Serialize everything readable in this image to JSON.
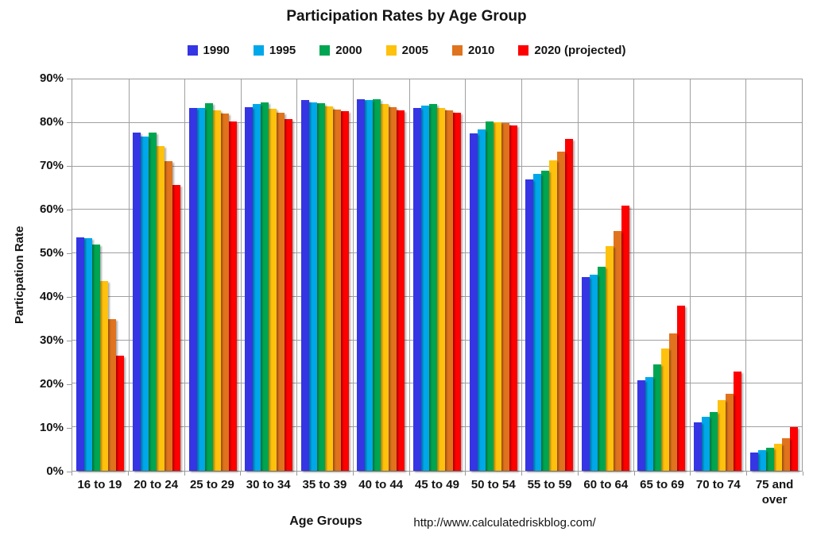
{
  "title": "Participation Rates by Age Group",
  "footer": {
    "url": "http://www.calculatedriskblog.com/"
  },
  "chart_data": {
    "type": "bar",
    "title": "Participation Rates by Age Group",
    "xlabel": "Age Groups",
    "ylabel": "Particpation Rate",
    "ylim": [
      0,
      90
    ],
    "ytick_step": 10,
    "ytick_suffix": "%",
    "grid": true,
    "legend_position": "top",
    "grid_color": "#a0a0a0",
    "categories": [
      "16 to 19",
      "20 to 24",
      "25 to 29",
      "30 to 34",
      "35 to 39",
      "40 to 44",
      "45 to 49",
      "50 to 54",
      "55 to 59",
      "60 to 64",
      "65 to 69",
      "70 to 74",
      "75 and over"
    ],
    "series": [
      {
        "name": "1990",
        "color": "#3535e4",
        "values": [
          53.7,
          77.8,
          83.5,
          83.7,
          85.3,
          85.5,
          83.5,
          77.5,
          67.0,
          44.5,
          20.9,
          11.1,
          4.2
        ]
      },
      {
        "name": "1995",
        "color": "#00a8ea",
        "values": [
          53.5,
          76.9,
          83.5,
          84.3,
          84.7,
          85.2,
          84.0,
          78.5,
          68.3,
          45.1,
          21.6,
          12.5,
          4.7
        ]
      },
      {
        "name": "2000",
        "color": "#00a551",
        "values": [
          52.0,
          77.8,
          84.6,
          84.8,
          84.6,
          85.4,
          84.4,
          80.3,
          69.1,
          47.0,
          24.5,
          13.5,
          5.3
        ]
      },
      {
        "name": "2005",
        "color": "#fec10d",
        "values": [
          43.7,
          74.6,
          82.8,
          83.2,
          83.8,
          84.4,
          83.5,
          80.1,
          71.4,
          51.6,
          28.1,
          16.3,
          6.2
        ]
      },
      {
        "name": "2010",
        "color": "#e0731d",
        "values": [
          34.9,
          71.2,
          82.2,
          82.4,
          83.1,
          83.6,
          82.9,
          79.9,
          73.4,
          55.2,
          31.5,
          17.8,
          7.4
        ]
      },
      {
        "name": "2020 (projected)",
        "color": "#fe0000",
        "values": [
          26.5,
          65.8,
          80.4,
          80.8,
          82.7,
          82.9,
          82.3,
          79.5,
          76.3,
          60.9,
          38.0,
          22.8,
          10.0
        ]
      }
    ]
  }
}
